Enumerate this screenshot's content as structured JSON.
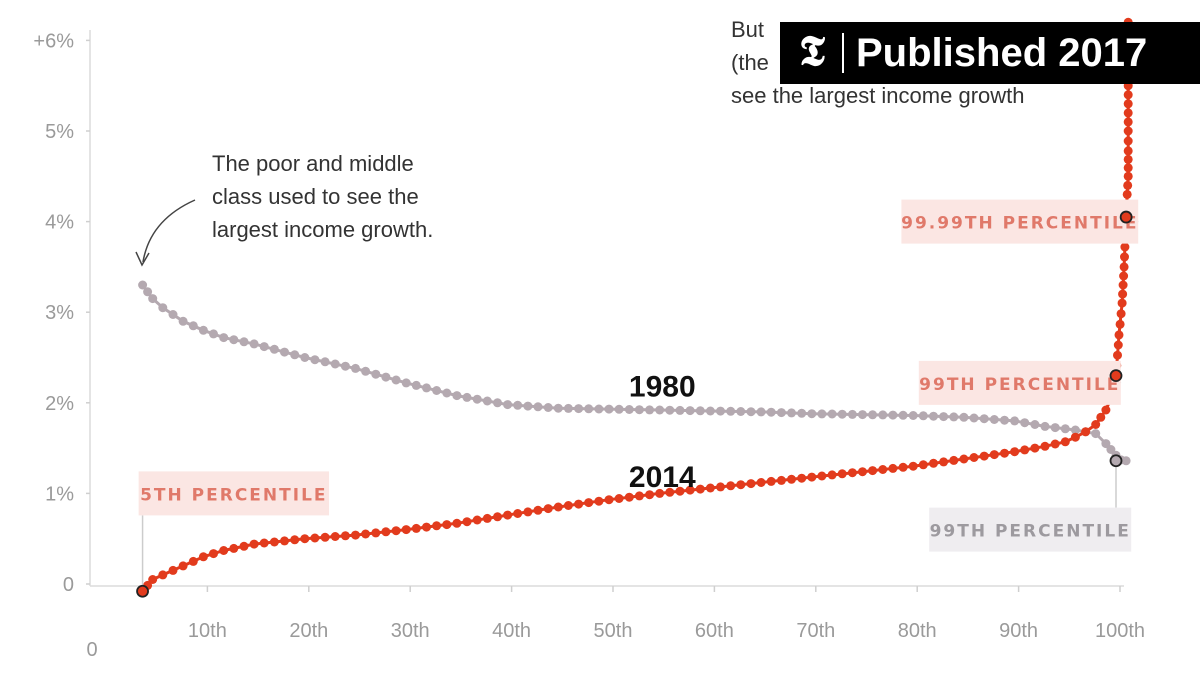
{
  "badge": {
    "text": "Published 2017",
    "logo_glyph": "𝕿",
    "logo_name": "nyt-t-logo"
  },
  "chart_data": {
    "type": "scatter",
    "title": "",
    "xlabel": "",
    "ylabel": "",
    "xlim": [
      0,
      101
    ],
    "ylim": [
      -0.6,
      6.2
    ],
    "grid": false,
    "y_ticks": [
      {
        "value": 0,
        "label": "0"
      },
      {
        "value": 1,
        "label": "1%"
      },
      {
        "value": 2,
        "label": "2%"
      },
      {
        "value": 3,
        "label": "3%"
      },
      {
        "value": 4,
        "label": "4%"
      },
      {
        "value": 5,
        "label": "5%"
      },
      {
        "value": 6,
        "label": "+6%"
      }
    ],
    "x_ticks": [
      {
        "value": 10,
        "label": "10th"
      },
      {
        "value": 20,
        "label": "20th"
      },
      {
        "value": 30,
        "label": "30th"
      },
      {
        "value": 40,
        "label": "40th"
      },
      {
        "value": 50,
        "label": "50th"
      },
      {
        "value": 60,
        "label": "60th"
      },
      {
        "value": 70,
        "label": "70th"
      },
      {
        "value": 80,
        "label": "80th"
      },
      {
        "value": 90,
        "label": "90th"
      },
      {
        "value": 100,
        "label": "100th"
      }
    ],
    "x_zero_label": "0",
    "series": [
      {
        "name": "1980",
        "color": "#b4a9b0",
        "x": [
          4,
          5,
          6,
          8,
          10,
          12,
          15,
          20,
          25,
          30,
          35,
          40,
          45,
          50,
          55,
          60,
          65,
          70,
          75,
          80,
          85,
          90,
          93,
          96,
          98,
          99,
          100,
          100.5,
          101
        ],
        "y": [
          3.3,
          3.15,
          3.05,
          2.9,
          2.8,
          2.72,
          2.65,
          2.5,
          2.38,
          2.22,
          2.08,
          1.98,
          1.94,
          1.93,
          1.92,
          1.91,
          1.9,
          1.88,
          1.87,
          1.86,
          1.84,
          1.8,
          1.74,
          1.7,
          1.66,
          1.55,
          1.42,
          1.37,
          1.36
        ]
      },
      {
        "name": "2014",
        "color": "#e23b1d",
        "x": [
          4,
          5,
          6,
          8,
          10,
          12,
          15,
          20,
          25,
          30,
          35,
          40,
          45,
          50,
          55,
          60,
          65,
          70,
          75,
          80,
          85,
          90,
          93,
          95,
          96,
          97,
          98,
          99,
          99.5,
          100,
          100.3,
          100.6,
          100.8,
          101,
          101.1,
          101.2,
          101.2,
          101.2,
          101.2,
          101.2
        ],
        "y": [
          -0.08,
          0.05,
          0.1,
          0.2,
          0.3,
          0.37,
          0.44,
          0.5,
          0.54,
          0.6,
          0.67,
          0.76,
          0.85,
          0.93,
          1.0,
          1.06,
          1.12,
          1.18,
          1.24,
          1.3,
          1.38,
          1.46,
          1.52,
          1.57,
          1.62,
          1.68,
          1.76,
          1.92,
          2.05,
          2.3,
          2.75,
          3.1,
          3.5,
          4.05,
          4.3,
          4.5,
          4.78,
          5.0,
          5.5,
          6.2
        ]
      }
    ],
    "series_labels": [
      {
        "text": "1980",
        "x": 52,
        "y": 2.07
      },
      {
        "text": "2014",
        "x": 52,
        "y": 1.07
      }
    ],
    "highlight_points": [
      {
        "series": "2014",
        "x": 4,
        "y": -0.08
      },
      {
        "series": "2014",
        "x": 100,
        "y": 2.3
      },
      {
        "series": "2014",
        "x": 101,
        "y": 4.05
      },
      {
        "series": "1980",
        "x": 100,
        "y": 1.36
      }
    ],
    "callouts": [
      {
        "id": "5th",
        "text": "5TH PERCENTILE",
        "text_color": "#e0796a",
        "bg_color": "#fbe6e3",
        "x": 13,
        "y": 1.0,
        "line_to": {
          "x": 4,
          "y": -0.08
        }
      },
      {
        "id": "99-2014",
        "text": "99TH PERCENTILE",
        "text_color": "#e0796a",
        "bg_color": "#fbe6e3",
        "x": 91.5,
        "y": 2.22,
        "line_to": {
          "x": 100,
          "y": 2.3
        }
      },
      {
        "id": "9999",
        "text": "99.99TH PERCENTILE",
        "text_color": "#e0796a",
        "bg_color": "#fbe6e3",
        "x": 91.5,
        "y": 4.0,
        "line_to": {
          "x": 101,
          "y": 4.05
        }
      },
      {
        "id": "99-1980",
        "text": "99TH PERCENTILE",
        "text_color": "#9d9a9f",
        "bg_color": "#efedf0",
        "x": 101.5,
        "y": 0.6,
        "line_to": {
          "x": 100,
          "y": 1.36
        }
      }
    ],
    "annotations": [
      {
        "id": "poor",
        "lines": [
          "The poor and middle",
          "class used to see the",
          "largest income growth."
        ]
      },
      {
        "id": "rich",
        "lines": [
          "But",
          "(the",
          "see the largest income growth"
        ]
      }
    ]
  }
}
